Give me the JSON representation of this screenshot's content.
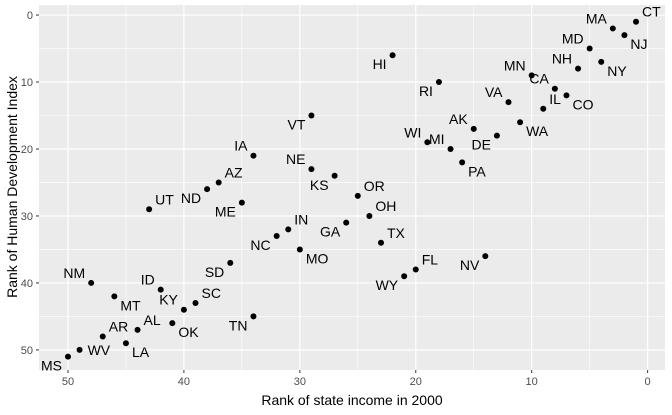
{
  "chart_data": {
    "type": "scatter",
    "xlabel": "Rank of state income in 2000",
    "ylabel": "Rank of Human Development Index",
    "xlim": [
      52.5,
      -1.5
    ],
    "ylim": [
      -1.5,
      53
    ],
    "x_reversed": true,
    "y_reversed": true,
    "xticks": [
      50,
      40,
      30,
      20,
      10,
      0
    ],
    "yticks": [
      0,
      10,
      20,
      30,
      40,
      50
    ],
    "grid": true,
    "point_color": "#000000",
    "panel_color": "#ebebeb",
    "grid_color": "#ffffff",
    "points": [
      {
        "label": "CT",
        "x": 1,
        "y": 1,
        "pos": "top-right"
      },
      {
        "label": "MA",
        "x": 3,
        "y": 2,
        "pos": "top-left"
      },
      {
        "label": "NJ",
        "x": 2,
        "y": 3,
        "pos": "bottom-right"
      },
      {
        "label": "MD",
        "x": 5,
        "y": 5,
        "pos": "top-left"
      },
      {
        "label": "NY",
        "x": 4,
        "y": 7,
        "pos": "bottom-right"
      },
      {
        "label": "HI",
        "x": 22,
        "y": 6,
        "pos": "bottom-left"
      },
      {
        "label": "NH",
        "x": 6,
        "y": 8,
        "pos": "top-left"
      },
      {
        "label": "MN",
        "x": 10,
        "y": 9,
        "pos": "top-left"
      },
      {
        "label": "RI",
        "x": 18,
        "y": 10,
        "pos": "bottom-left"
      },
      {
        "label": "CA",
        "x": 8,
        "y": 11,
        "pos": "top-left"
      },
      {
        "label": "CO",
        "x": 7,
        "y": 12,
        "pos": "bottom-right"
      },
      {
        "label": "VA",
        "x": 12,
        "y": 13,
        "pos": "top-left"
      },
      {
        "label": "IL",
        "x": 9,
        "y": 14,
        "pos": "top-right"
      },
      {
        "label": "VT",
        "x": 29,
        "y": 15,
        "pos": "bottom-left"
      },
      {
        "label": "WA",
        "x": 11,
        "y": 16,
        "pos": "bottom-right"
      },
      {
        "label": "AK",
        "x": 15,
        "y": 17,
        "pos": "top-left"
      },
      {
        "label": "DE",
        "x": 13,
        "y": 18,
        "pos": "bottom-left"
      },
      {
        "label": "WI",
        "x": 19,
        "y": 19,
        "pos": "top-left"
      },
      {
        "label": "MI",
        "x": 17,
        "y": 20,
        "pos": "top-left"
      },
      {
        "label": "IA",
        "x": 34,
        "y": 21,
        "pos": "top-left"
      },
      {
        "label": "PA",
        "x": 16,
        "y": 22,
        "pos": "bottom-right"
      },
      {
        "label": "NE",
        "x": 29,
        "y": 23,
        "pos": "top-left"
      },
      {
        "label": "KS",
        "x": 27,
        "y": 24,
        "pos": "bottom-left"
      },
      {
        "label": "AZ",
        "x": 37,
        "y": 25,
        "pos": "top-right"
      },
      {
        "label": "ND",
        "x": 38,
        "y": 26,
        "pos": "bottom-left"
      },
      {
        "label": "OR",
        "x": 25,
        "y": 27,
        "pos": "top-right"
      },
      {
        "label": "ME",
        "x": 35,
        "y": 28,
        "pos": "bottom-left"
      },
      {
        "label": "UT",
        "x": 43,
        "y": 29,
        "pos": "top-right"
      },
      {
        "label": "OH",
        "x": 24,
        "y": 30,
        "pos": "top-right"
      },
      {
        "label": "GA",
        "x": 26,
        "y": 31,
        "pos": "bottom-left"
      },
      {
        "label": "IN",
        "x": 31,
        "y": 32,
        "pos": "top-right"
      },
      {
        "label": "NC",
        "x": 32,
        "y": 33,
        "pos": "bottom-left"
      },
      {
        "label": "TX",
        "x": 23,
        "y": 34,
        "pos": "top-right"
      },
      {
        "label": "MO",
        "x": 30,
        "y": 35,
        "pos": "bottom-right"
      },
      {
        "label": "NV",
        "x": 14,
        "y": 36,
        "pos": "bottom-left"
      },
      {
        "label": "SD",
        "x": 36,
        "y": 37,
        "pos": "bottom-left"
      },
      {
        "label": "FL",
        "x": 20,
        "y": 38,
        "pos": "top-right"
      },
      {
        "label": "WY",
        "x": 21,
        "y": 39,
        "pos": "bottom-left"
      },
      {
        "label": "NM",
        "x": 48,
        "y": 40,
        "pos": "top-left"
      },
      {
        "label": "ID",
        "x": 42,
        "y": 41,
        "pos": "top-left"
      },
      {
        "label": "MT",
        "x": 46,
        "y": 42,
        "pos": "bottom-right"
      },
      {
        "label": "SC",
        "x": 39,
        "y": 43,
        "pos": "top-right"
      },
      {
        "label": "KY",
        "x": 40,
        "y": 44,
        "pos": "top-left"
      },
      {
        "label": "TN",
        "x": 34,
        "y": 45,
        "pos": "bottom-left"
      },
      {
        "label": "OK",
        "x": 41,
        "y": 46,
        "pos": "bottom-right"
      },
      {
        "label": "AL",
        "x": 44,
        "y": 47,
        "pos": "top-right"
      },
      {
        "label": "AR",
        "x": 47,
        "y": 48,
        "pos": "top-right"
      },
      {
        "label": "LA",
        "x": 45,
        "y": 49,
        "pos": "bottom-right"
      },
      {
        "label": "WV",
        "x": 49,
        "y": 50,
        "pos": "right"
      },
      {
        "label": "MS",
        "x": 50,
        "y": 51,
        "pos": "bottom-left"
      }
    ]
  }
}
